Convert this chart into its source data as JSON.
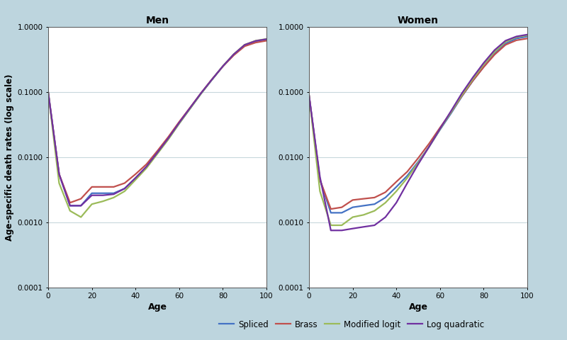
{
  "background_color": "#bdd5de",
  "plot_background": "#ffffff",
  "title_men": "Men",
  "title_women": "Women",
  "xlabel": "Age",
  "ylabel": "Age-specific death rates (log scale)",
  "ylim": [
    0.0001,
    1.0
  ],
  "xlim": [
    0,
    100
  ],
  "yticks": [
    0.0001,
    0.001,
    0.01,
    0.1,
    1.0
  ],
  "ytick_labels": [
    "0.0001",
    "0.0010",
    "0.0100",
    "0.1000",
    "1.0000"
  ],
  "xticks": [
    0,
    20,
    40,
    60,
    80,
    100
  ],
  "legend_labels": [
    "Spliced",
    "Brass",
    "Modified logit",
    "Log quadratic"
  ],
  "line_colors": [
    "#4472c4",
    "#c0504d",
    "#9bbb59",
    "#7030a0"
  ],
  "line_width": 1.6,
  "ages": [
    0,
    5,
    10,
    15,
    20,
    25,
    30,
    35,
    40,
    45,
    50,
    55,
    60,
    65,
    70,
    75,
    80,
    85,
    90,
    95,
    100
  ],
  "men": {
    "spliced": [
      0.1,
      0.0055,
      0.0018,
      0.0018,
      0.0028,
      0.0028,
      0.0028,
      0.0033,
      0.0048,
      0.007,
      0.0115,
      0.019,
      0.033,
      0.056,
      0.095,
      0.155,
      0.25,
      0.38,
      0.53,
      0.61,
      0.65
    ],
    "brass": [
      0.1,
      0.0055,
      0.002,
      0.0023,
      0.0035,
      0.0035,
      0.0035,
      0.004,
      0.0055,
      0.0078,
      0.0125,
      0.0205,
      0.035,
      0.058,
      0.097,
      0.158,
      0.249,
      0.37,
      0.51,
      0.58,
      0.62
    ],
    "modified_logit": [
      0.1,
      0.004,
      0.0015,
      0.0012,
      0.0019,
      0.0021,
      0.0024,
      0.003,
      0.0045,
      0.0068,
      0.0113,
      0.0188,
      0.033,
      0.056,
      0.095,
      0.156,
      0.252,
      0.385,
      0.538,
      0.62,
      0.66
    ],
    "log_quadratic": [
      0.1,
      0.0055,
      0.0018,
      0.0018,
      0.0026,
      0.0026,
      0.0027,
      0.0033,
      0.0048,
      0.0072,
      0.0118,
      0.0196,
      0.034,
      0.0575,
      0.0968,
      0.157,
      0.251,
      0.383,
      0.535,
      0.615,
      0.655
    ]
  },
  "women": {
    "spliced": [
      0.09,
      0.0045,
      0.0014,
      0.0014,
      0.0017,
      0.0018,
      0.0019,
      0.0024,
      0.0035,
      0.0052,
      0.0085,
      0.0145,
      0.0265,
      0.047,
      0.086,
      0.149,
      0.246,
      0.39,
      0.56,
      0.67,
      0.72
    ],
    "brass": [
      0.09,
      0.0045,
      0.0016,
      0.0017,
      0.0022,
      0.0023,
      0.0024,
      0.0029,
      0.0042,
      0.006,
      0.0097,
      0.0162,
      0.0285,
      0.049,
      0.0875,
      0.15,
      0.243,
      0.378,
      0.535,
      0.63,
      0.67
    ],
    "modified_logit": [
      0.09,
      0.003,
      0.0009,
      0.0009,
      0.0012,
      0.0013,
      0.0015,
      0.002,
      0.003,
      0.0048,
      0.0082,
      0.0145,
      0.027,
      0.049,
      0.09,
      0.158,
      0.267,
      0.42,
      0.595,
      0.705,
      0.75
    ],
    "log_quadratic": [
      0.09,
      0.005,
      0.00075,
      0.00075,
      0.0008,
      0.00085,
      0.0009,
      0.0012,
      0.002,
      0.004,
      0.0078,
      0.0145,
      0.0275,
      0.051,
      0.096,
      0.168,
      0.282,
      0.445,
      0.62,
      0.72,
      0.77
    ]
  }
}
